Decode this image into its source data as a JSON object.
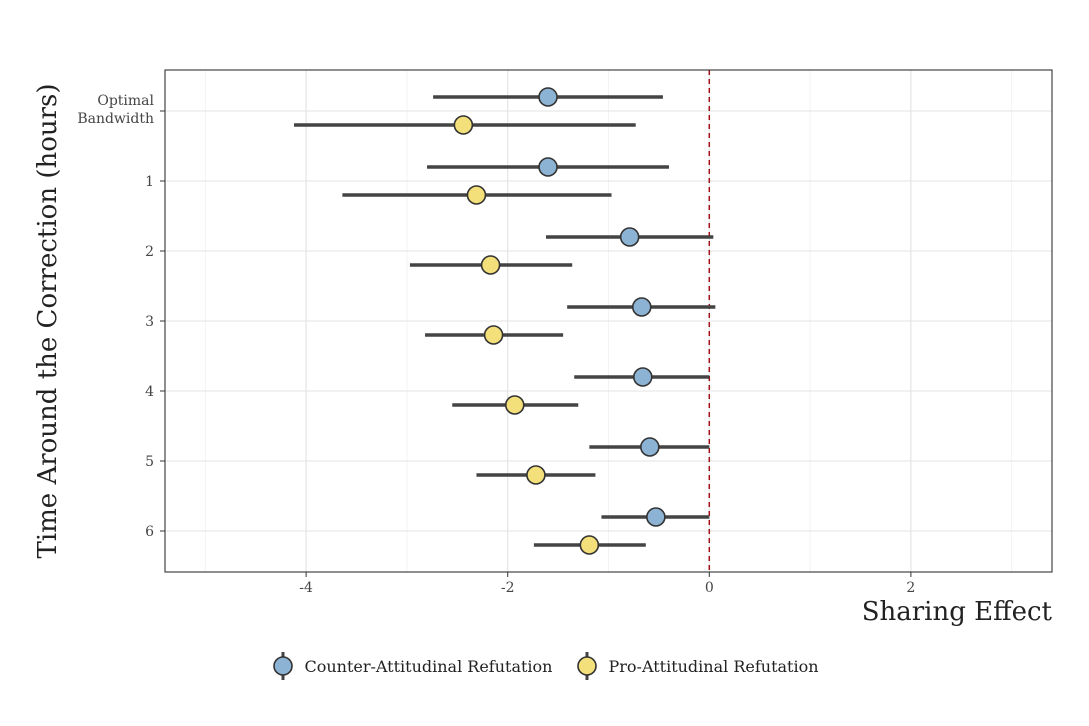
{
  "chart_data": {
    "type": "scatter",
    "subtype": "coefficient-plot-horizontal-errorbars",
    "xlabel": "Sharing Effect",
    "ylabel": "Time Around the Correction (hours)",
    "xlim": [
      -5.4,
      3.4
    ],
    "x_ticks": [
      "-4",
      "-2",
      "0",
      "2"
    ],
    "x_tick_values": [
      -4,
      -2,
      0,
      2
    ],
    "y_ticks": [
      {
        "label": "Optimal Bandwidth",
        "lines": [
          "Optimal",
          "Bandwidth"
        ]
      },
      {
        "label": "1",
        "lines": [
          "1"
        ]
      },
      {
        "label": "2",
        "lines": [
          "2"
        ]
      },
      {
        "label": "3",
        "lines": [
          "3"
        ]
      },
      {
        "label": "4",
        "lines": [
          "4"
        ]
      },
      {
        "label": "5",
        "lines": [
          "5"
        ]
      },
      {
        "label": "6",
        "lines": [
          "6"
        ]
      }
    ],
    "reference_line": {
      "x": 0,
      "style": "dashed",
      "color": "#a50f15"
    },
    "grid": true,
    "legend_position": "bottom",
    "series": [
      {
        "name": "Counter-Attitudinal Refutation",
        "color": "#8db3d4",
        "points": [
          {
            "category": "Optimal Bandwidth",
            "estimate": -1.6,
            "low": -2.74,
            "high": -0.46
          },
          {
            "category": "1",
            "estimate": -1.6,
            "low": -2.8,
            "high": -0.4
          },
          {
            "category": "2",
            "estimate": -0.79,
            "low": -1.62,
            "high": 0.04
          },
          {
            "category": "3",
            "estimate": -0.67,
            "low": -1.41,
            "high": 0.06
          },
          {
            "category": "4",
            "estimate": -0.66,
            "low": -1.34,
            "high": 0.0
          },
          {
            "category": "5",
            "estimate": -0.59,
            "low": -1.19,
            "high": 0.0
          },
          {
            "category": "6",
            "estimate": -0.53,
            "low": -1.07,
            "high": 0.0
          }
        ]
      },
      {
        "name": "Pro-Attitudinal Refutation",
        "color": "#f4e07a",
        "points": [
          {
            "category": "Optimal Bandwidth",
            "estimate": -2.44,
            "low": -4.12,
            "high": -0.73
          },
          {
            "category": "1",
            "estimate": -2.31,
            "low": -3.64,
            "high": -0.97
          },
          {
            "category": "2",
            "estimate": -2.17,
            "low": -2.97,
            "high": -1.36
          },
          {
            "category": "3",
            "estimate": -2.14,
            "low": -2.82,
            "high": -1.45
          },
          {
            "category": "4",
            "estimate": -1.93,
            "low": -2.55,
            "high": -1.3
          },
          {
            "category": "5",
            "estimate": -1.72,
            "low": -2.31,
            "high": -1.13
          },
          {
            "category": "6",
            "estimate": -1.19,
            "low": -1.74,
            "high": -0.63
          }
        ]
      }
    ]
  },
  "legend": {
    "items": [
      {
        "label": "Counter-Attitudinal Refutation",
        "color": "#8db3d4"
      },
      {
        "label": "Pro-Attitudinal Refutation",
        "color": "#f4e07a"
      }
    ]
  }
}
